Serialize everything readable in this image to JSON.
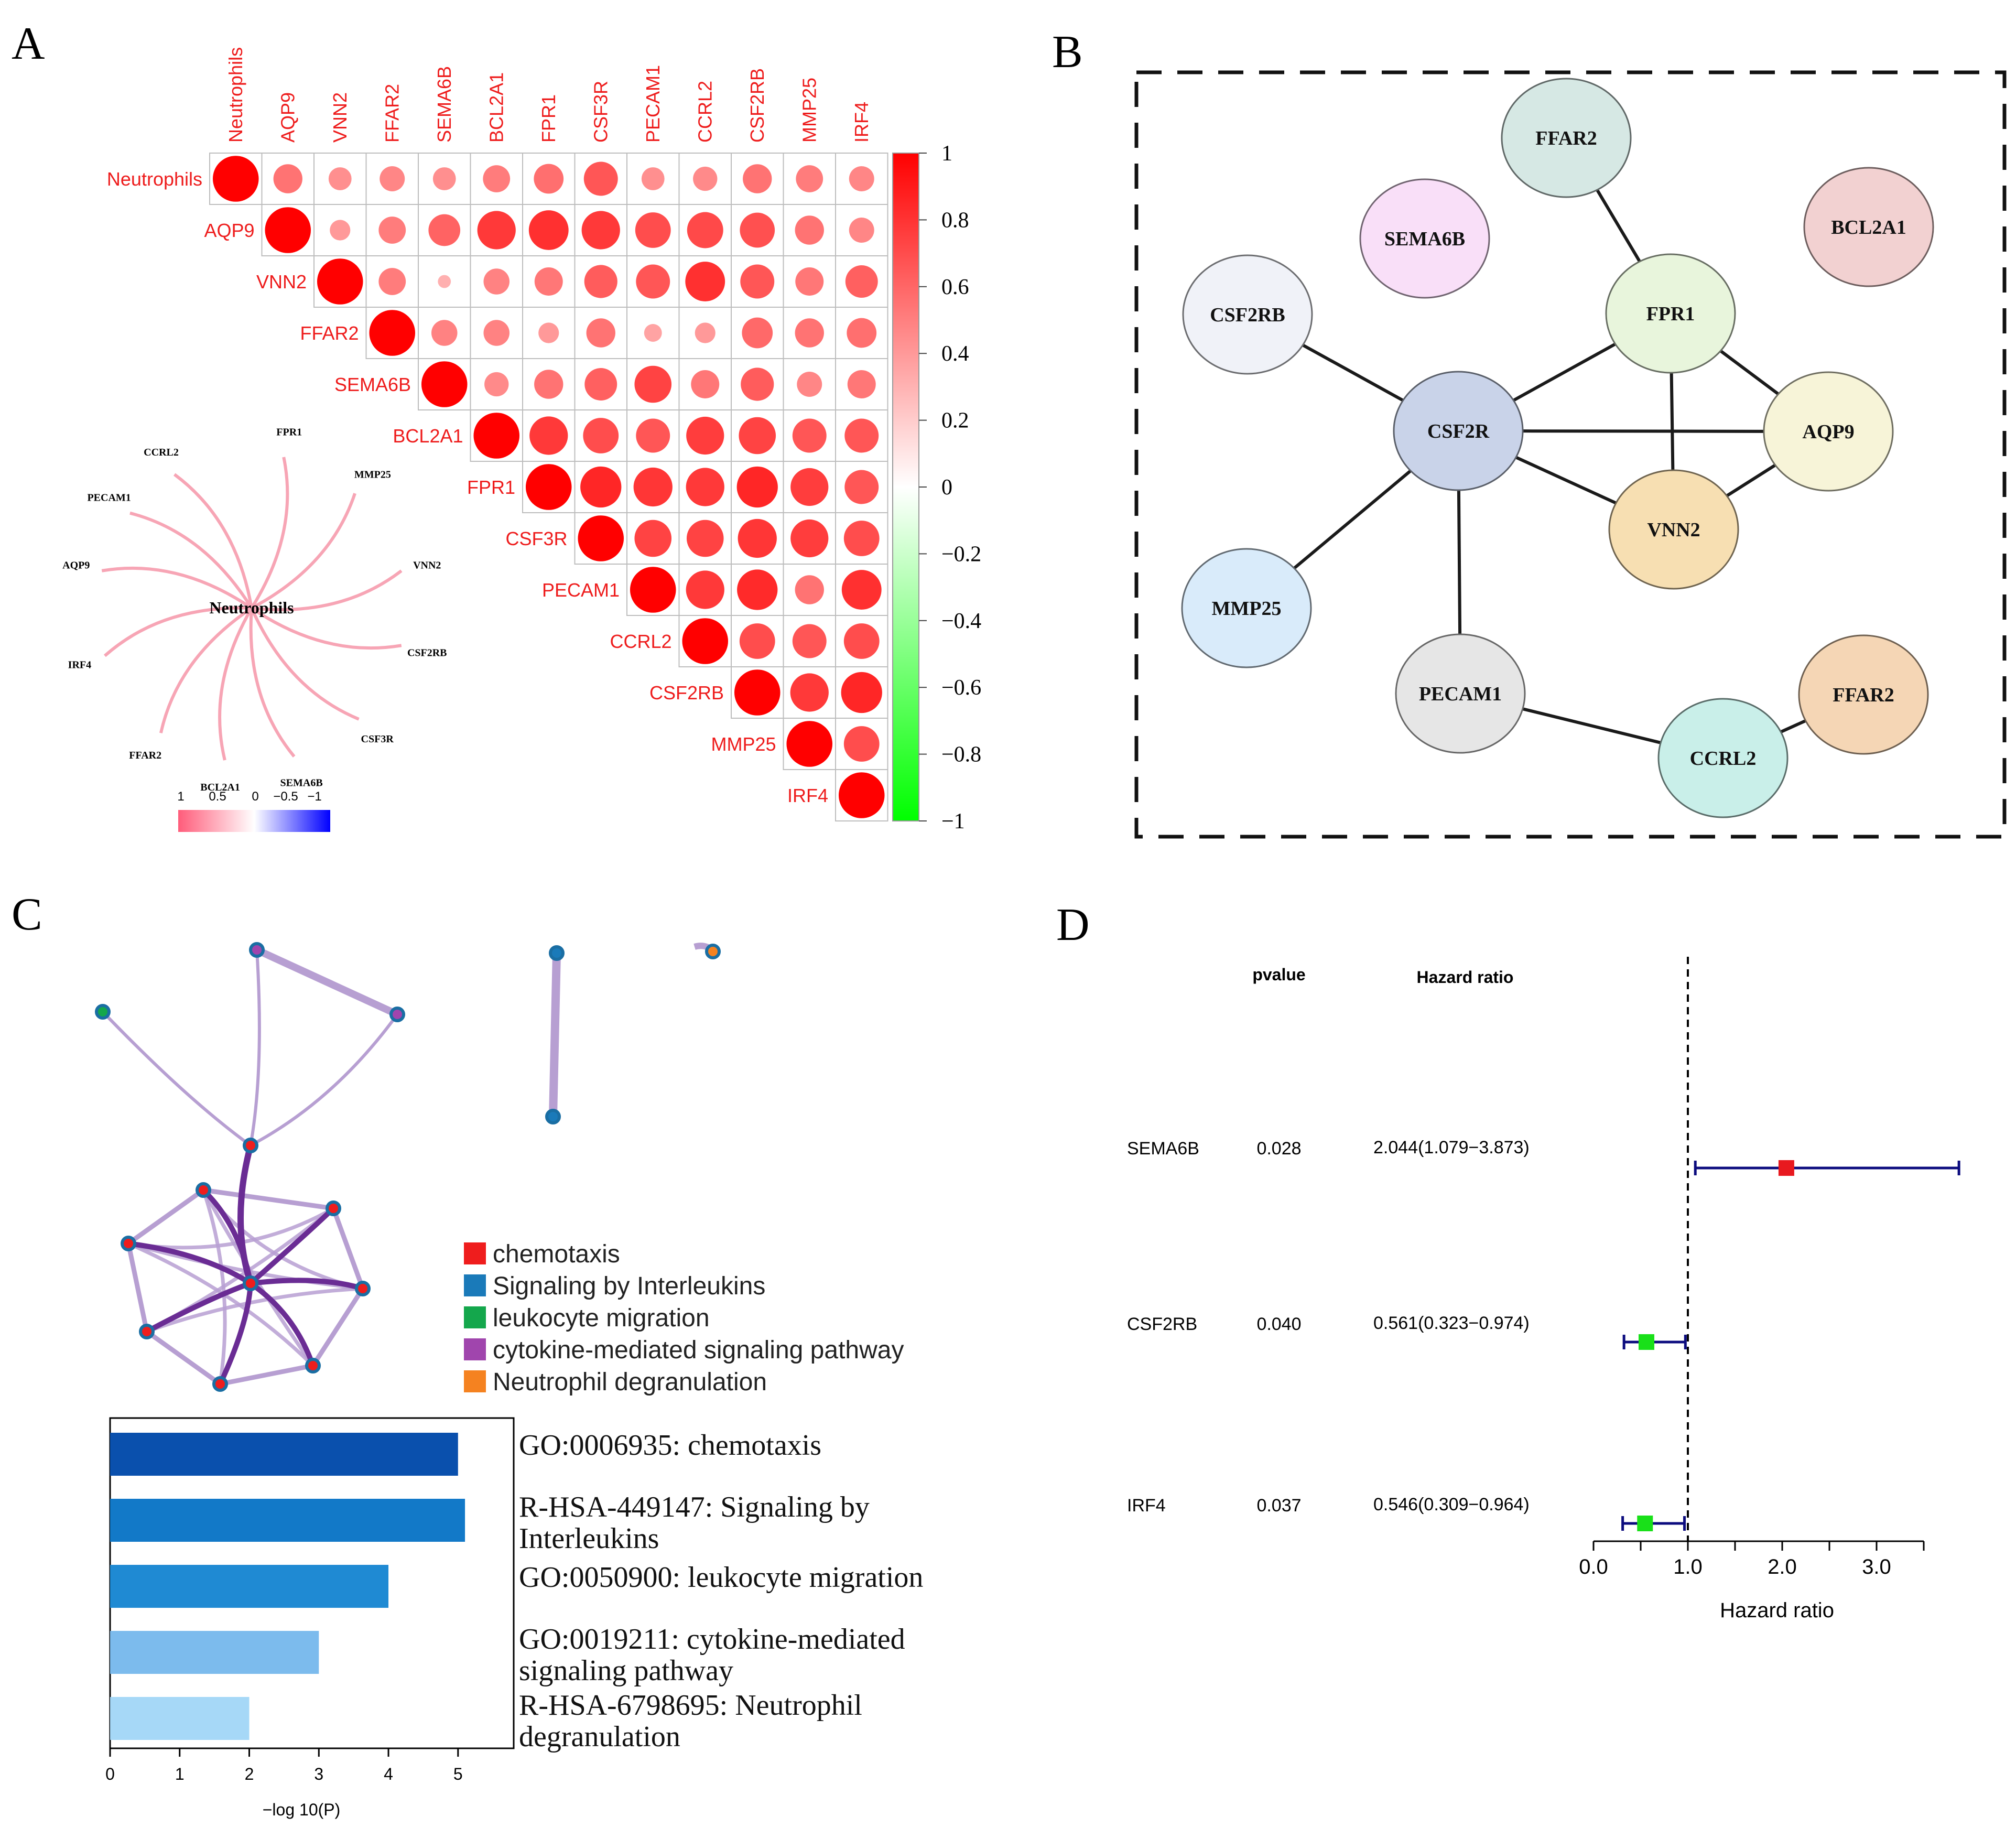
{
  "panel_labels": {
    "a": "A",
    "b": "B",
    "c": "C",
    "d": "D"
  },
  "chart_data": [
    {
      "type": "heatmap",
      "panel": "A",
      "title": "",
      "variables": [
        "Neutrophils",
        "AQP9",
        "VNN2",
        "FFAR2",
        "SEMA6B",
        "BCL2A1",
        "FPR1",
        "CSF3R",
        "PECAM1",
        "CCRL2",
        "CSF2RB",
        "MMP25",
        "IRF4"
      ],
      "matrix": [
        [
          1.0,
          0.4,
          0.25,
          0.3,
          0.25,
          0.35,
          0.42,
          0.55,
          0.25,
          0.28,
          0.4,
          0.35,
          0.3
        ],
        [
          null,
          1.0,
          0.2,
          0.35,
          0.48,
          0.7,
          0.75,
          0.7,
          0.6,
          0.62,
          0.58,
          0.4,
          0.3
        ],
        [
          null,
          null,
          1.0,
          0.35,
          0.08,
          0.32,
          0.38,
          0.52,
          0.55,
          0.75,
          0.55,
          0.38,
          0.5
        ],
        [
          null,
          null,
          null,
          1.0,
          0.32,
          0.32,
          0.2,
          0.4,
          0.15,
          0.2,
          0.45,
          0.4,
          0.42
        ],
        [
          null,
          null,
          null,
          null,
          1.0,
          0.28,
          0.4,
          0.5,
          0.65,
          0.38,
          0.52,
          0.3,
          0.38
        ],
        [
          null,
          null,
          null,
          null,
          null,
          1.0,
          0.7,
          0.6,
          0.55,
          0.68,
          0.65,
          0.55,
          0.55
        ],
        [
          null,
          null,
          null,
          null,
          null,
          null,
          1.0,
          0.8,
          0.72,
          0.7,
          0.8,
          0.68,
          0.55
        ],
        [
          null,
          null,
          null,
          null,
          null,
          null,
          null,
          1.0,
          0.65,
          0.65,
          0.72,
          0.68,
          0.6
        ],
        [
          null,
          null,
          null,
          null,
          null,
          null,
          null,
          null,
          1.0,
          0.7,
          0.78,
          0.4,
          0.75
        ],
        [
          null,
          null,
          null,
          null,
          null,
          null,
          null,
          null,
          null,
          1.0,
          0.6,
          0.55,
          0.6
        ],
        [
          null,
          null,
          null,
          null,
          null,
          null,
          null,
          null,
          null,
          null,
          1.0,
          0.7,
          0.8
        ],
        [
          null,
          null,
          null,
          null,
          null,
          null,
          null,
          null,
          null,
          null,
          null,
          1.0,
          0.6
        ],
        [
          null,
          null,
          null,
          null,
          null,
          null,
          null,
          null,
          null,
          null,
          null,
          null,
          1.0
        ]
      ],
      "colorbar_ticks": [
        "1",
        "0.8",
        "0.6",
        "0.4",
        "0.2",
        "0",
        "−0.2",
        "−0.4",
        "−0.6",
        "−0.8",
        "−1"
      ],
      "colors": {
        "high": "#ff0000",
        "mid": "#ffffff",
        "low": "#00ff00"
      },
      "inset": {
        "center_label": "Neutrophils",
        "genes": [
          "CCRL2",
          "FPR1",
          "MMP25",
          "VNN2",
          "CSF2RB",
          "CSF3R",
          "SEMA6B",
          "BCL2A1",
          "FFAR2",
          "IRF4",
          "AQP9",
          "PECAM1"
        ],
        "legend_ticks": [
          "1",
          "0.5",
          "0",
          "−0.5",
          "−1"
        ],
        "colors": {
          "pos": "#ff6b85",
          "neg": "#0000ff",
          "edge": "#f7a5b5"
        }
      }
    },
    {
      "type": "table",
      "panel": "B",
      "title": "",
      "nodes": [
        {
          "label": "FFAR2",
          "color": "#d6e8e4"
        },
        {
          "label": "SEMA6B",
          "color": "#f9dff8"
        },
        {
          "label": "BCL2A1",
          "color": "#f2d1d1"
        },
        {
          "label": "CSF2RB",
          "color": "#f0f2f8"
        },
        {
          "label": "FPR1",
          "color": "#e8f5dc"
        },
        {
          "label": "CSF2R",
          "color": "#c9d3e9"
        },
        {
          "label": "AQP9",
          "color": "#f7f4d8"
        },
        {
          "label": "VNN2",
          "color": "#f7dfb2"
        },
        {
          "label": "MMP25",
          "color": "#d9ebfa"
        },
        {
          "label": "PECAM1",
          "color": "#e6e6e6"
        },
        {
          "label": "FFAR2",
          "color": "#f5d6b5"
        },
        {
          "label": "CCRL2",
          "color": "#c9efe9"
        }
      ],
      "edges": [
        [
          "FFAR2",
          "FPR1"
        ],
        [
          "CSF2RB",
          "CSF2R"
        ],
        [
          "CSF2R",
          "FPR1"
        ],
        [
          "CSF2R",
          "AQP9"
        ],
        [
          "CSF2R",
          "VNN2"
        ],
        [
          "CSF2R",
          "MMP25"
        ],
        [
          "CSF2R",
          "PECAM1"
        ],
        [
          "FPR1",
          "AQP9"
        ],
        [
          "FPR1",
          "VNN2"
        ],
        [
          "VNN2",
          "AQP9"
        ],
        [
          "PECAM1",
          "CCRL2"
        ],
        [
          "CCRL2",
          "FFAR2"
        ]
      ]
    },
    {
      "type": "bar",
      "panel": "C",
      "title": "",
      "categories": [
        "GO:0006935: chemotaxis",
        "R-HSA-449147: Signaling by Interleukins",
        "GO:0050900: leukocyte migration",
        "GO:0019211: cytokine-mediated signaling pathway",
        "R-HSA-6798695: Neutrophil degranulation"
      ],
      "category_lines": [
        [
          "GO:0006935: chemotaxis"
        ],
        [
          "R-HSA-449147: Signaling by",
          "Interleukins"
        ],
        [
          "GO:0050900: leukocyte migration"
        ],
        [
          "GO:0019211: cytokine-mediated",
          "signaling pathway"
        ],
        [
          "R-HSA-6798695: Neutrophil",
          "degranulation"
        ]
      ],
      "values": [
        5.0,
        5.1,
        4.0,
        3.0,
        2.0
      ],
      "bar_colors": [
        "#0a50ad",
        "#1279c8",
        "#1f8ad3",
        "#7cbbed",
        "#a6d8f7"
      ],
      "xlabel": "−log 10(P)",
      "xlim": [
        0,
        5.8
      ],
      "xticks": [
        0,
        1,
        2,
        3,
        4,
        5
      ],
      "legend": [
        {
          "label": "chemotaxis",
          "color": "#ef1d1d"
        },
        {
          "label": "Signaling by Interleukins",
          "color": "#1a7ab9"
        },
        {
          "label": "leukocyte migration",
          "color": "#14a74c"
        },
        {
          "label": "cytokine-mediated signaling pathway",
          "color": "#a045ad"
        },
        {
          "label": "Neutrophil degranulation",
          "color": "#f58220"
        }
      ],
      "network_colors": {
        "edge": "#b79fd2",
        "edge_strong": "#6a2c94",
        "node_border": "#1a6ea3"
      }
    },
    {
      "type": "scatter",
      "panel": "D",
      "title": "",
      "header_pvalue": "pvalue",
      "header_hr": "Hazard ratio",
      "rows": [
        {
          "gene": "SEMA6B",
          "pvalue": "0.028",
          "hr_text": "2.044(1.079−3.873)",
          "hr": 2.044,
          "lo": 1.079,
          "hi": 3.873,
          "color": "#e8191f"
        },
        {
          "gene": "CSF2RB",
          "pvalue": "0.040",
          "hr_text": "0.561(0.323−0.974)",
          "hr": 0.561,
          "lo": 0.323,
          "hi": 0.974,
          "color": "#19e019"
        },
        {
          "gene": "IRF4",
          "pvalue": "0.037",
          "hr_text": "0.546(0.309−0.964)",
          "hr": 0.546,
          "lo": 0.309,
          "hi": 0.964,
          "color": "#19e019"
        }
      ],
      "xlabel": "Hazard ratio",
      "xlim": [
        0,
        3.5
      ],
      "xticks": [
        0,
        1,
        2,
        3
      ],
      "xtick_labels": [
        "0.0",
        "1.0",
        "2.0",
        "3.0"
      ],
      "reference_line": 1.0,
      "ci_color": "#0b0b7e"
    }
  ]
}
